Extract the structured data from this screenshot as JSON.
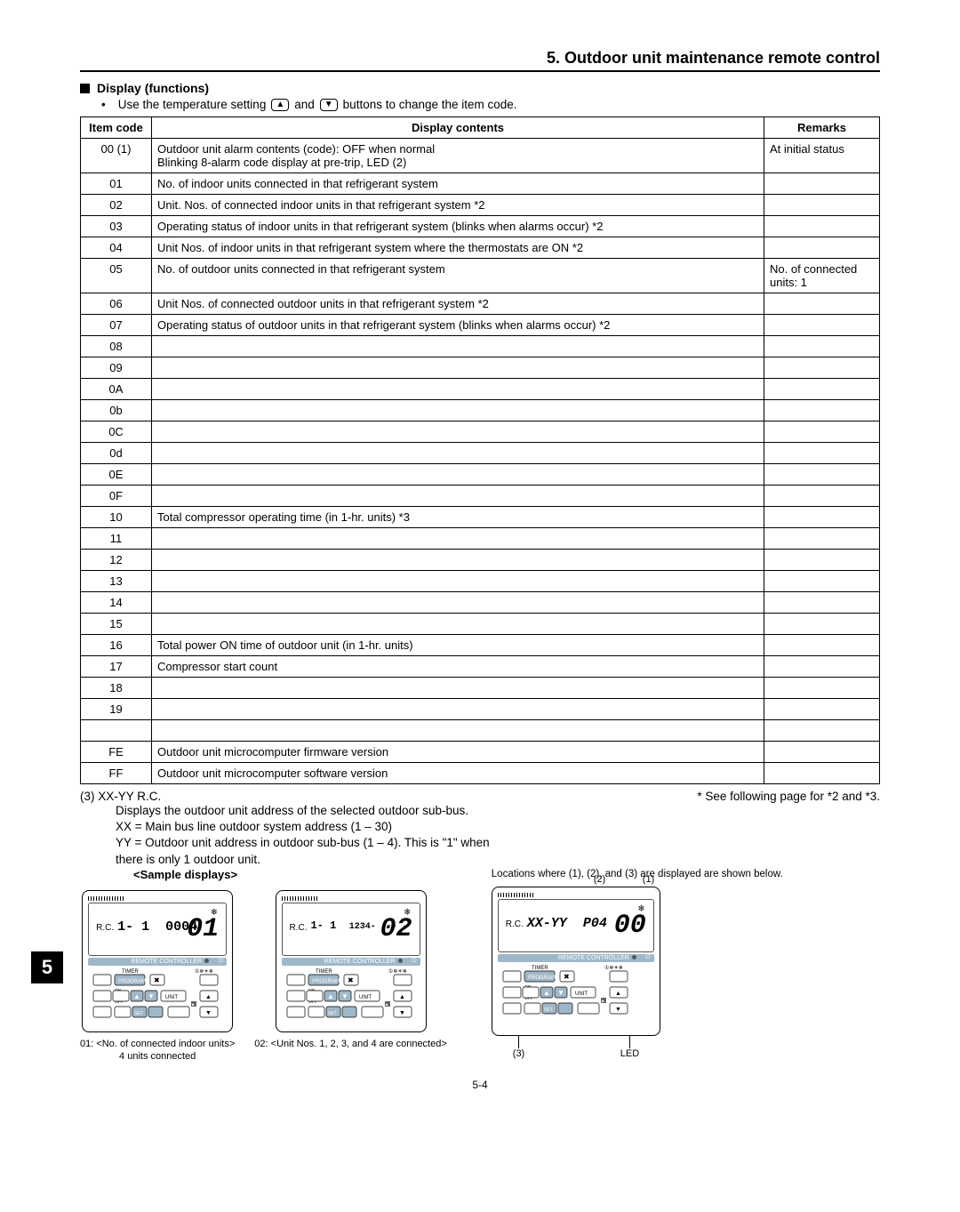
{
  "header": {
    "title": "5. Outdoor unit maintenance remote control",
    "section": "Display (functions)",
    "instruction_prefix": "Use the temperature setting",
    "instruction_suffix": "buttons to change the item code.",
    "and_word": "and"
  },
  "table": {
    "headers": {
      "code": "Item code",
      "contents": "Display contents",
      "remarks": "Remarks"
    },
    "rows": [
      {
        "code": "00 (1)",
        "contents": "Outdoor unit alarm contents (code): OFF when normal\nBlinking 8-alarm code display at pre-trip, LED (2)",
        "remarks": "At initial status"
      },
      {
        "code": "01",
        "contents": "No. of indoor units connected in that refrigerant system",
        "remarks": ""
      },
      {
        "code": "02",
        "contents": "Unit. Nos. of connected indoor units in that refrigerant system *2",
        "remarks": ""
      },
      {
        "code": "03",
        "contents": "Operating status of indoor units in that refrigerant system (blinks when alarms occur) *2",
        "remarks": ""
      },
      {
        "code": "04",
        "contents": "Unit Nos. of indoor units in that refrigerant system where the thermostats are ON *2",
        "remarks": ""
      },
      {
        "code": "05",
        "contents": "No. of outdoor units connected in that refrigerant system",
        "remarks": "No. of connected units: 1"
      },
      {
        "code": "06",
        "contents": "Unit Nos. of connected outdoor units in that refrigerant system *2",
        "remarks": ""
      },
      {
        "code": "07",
        "contents": "Operating status of outdoor units in that refrigerant system (blinks when alarms occur) *2",
        "remarks": ""
      },
      {
        "code": "08",
        "contents": "",
        "remarks": ""
      },
      {
        "code": "09",
        "contents": "",
        "remarks": ""
      },
      {
        "code": "0A",
        "contents": "",
        "remarks": ""
      },
      {
        "code": "0b",
        "contents": "",
        "remarks": ""
      },
      {
        "code": "0C",
        "contents": "",
        "remarks": ""
      },
      {
        "code": "0d",
        "contents": "",
        "remarks": ""
      },
      {
        "code": "0E",
        "contents": "",
        "remarks": ""
      },
      {
        "code": "0F",
        "contents": "",
        "remarks": ""
      },
      {
        "code": "10",
        "contents": "Total compressor operating time (in 1-hr. units) *3",
        "remarks": ""
      },
      {
        "code": "11",
        "contents": "",
        "remarks": ""
      },
      {
        "code": "12",
        "contents": "",
        "remarks": ""
      },
      {
        "code": "13",
        "contents": "",
        "remarks": ""
      },
      {
        "code": "14",
        "contents": "",
        "remarks": ""
      },
      {
        "code": "15",
        "contents": "",
        "remarks": ""
      },
      {
        "code": "16",
        "contents": "Total power ON time of outdoor unit (in 1-hr. units)",
        "remarks": ""
      },
      {
        "code": "17",
        "contents": "Compressor start count",
        "remarks": ""
      },
      {
        "code": "18",
        "contents": "",
        "remarks": ""
      },
      {
        "code": "19",
        "contents": "",
        "remarks": ""
      },
      {
        "code": "",
        "contents": "",
        "remarks": ""
      },
      {
        "code": "FE",
        "contents": "Outdoor unit microcomputer firmware version",
        "remarks": ""
      },
      {
        "code": "FF",
        "contents": "Outdoor unit microcomputer software version",
        "remarks": ""
      }
    ]
  },
  "notes": {
    "left_head": "(3) XX-YY R.C.",
    "right_note": "* See following page for *2 and *3.",
    "lines": [
      "Displays the outdoor unit address of the selected outdoor sub-bus.",
      "XX = Main bus line outdoor system address (1 – 30)",
      "YY = Outdoor unit address in outdoor sub-bus (1 – 4). This is \"1\" when",
      "there is only 1 outdoor unit."
    ]
  },
  "samples": {
    "title": "<Sample displays>",
    "s1": {
      "rc": "1- 1",
      "code": "0004",
      "big": "01",
      "caption1": "01: <No. of connected indoor units>",
      "caption2": "4 units connected"
    },
    "s2": {
      "rc": "1- 1",
      "code": "1234- - - -",
      "big": "02",
      "caption1": "02: <Unit Nos. 1, 2, 3, and 4 are connected>"
    },
    "s3": {
      "rc": "XX-YY",
      "code": "P04",
      "big": "00",
      "note": "Locations where (1), (2), and (3) are displayed are shown below.",
      "a1": "(1)",
      "a2": "(2)",
      "a3": "(3)",
      "aL": "LED"
    }
  },
  "sideTab": "5",
  "pageNum": "5-4",
  "controllerUI": {
    "labelBar": "REMOTE CONTROLLER",
    "timer": "TIMER",
    "program": "PROGRAM",
    "unit": "UNIT",
    "set": "SET",
    "on": "ON",
    "off": "OFF",
    "power_icon": "⏻"
  }
}
